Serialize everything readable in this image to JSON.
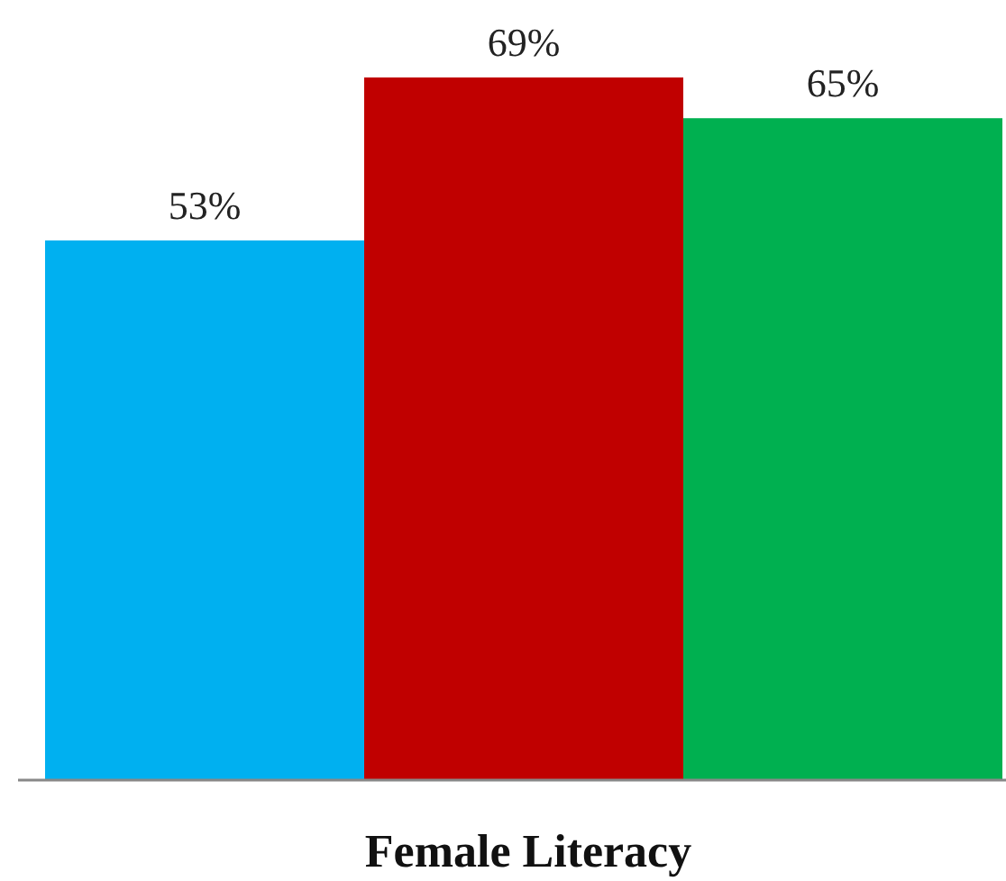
{
  "chart_data": {
    "type": "bar",
    "xlabel": "Female Literacy",
    "categories": [
      null,
      null,
      null
    ],
    "values": [
      53,
      69,
      65
    ],
    "colors": [
      "#00b0f0",
      "#c00000",
      "#00b050"
    ],
    "value_labels": [
      "53%",
      "69%",
      "65%"
    ]
  }
}
